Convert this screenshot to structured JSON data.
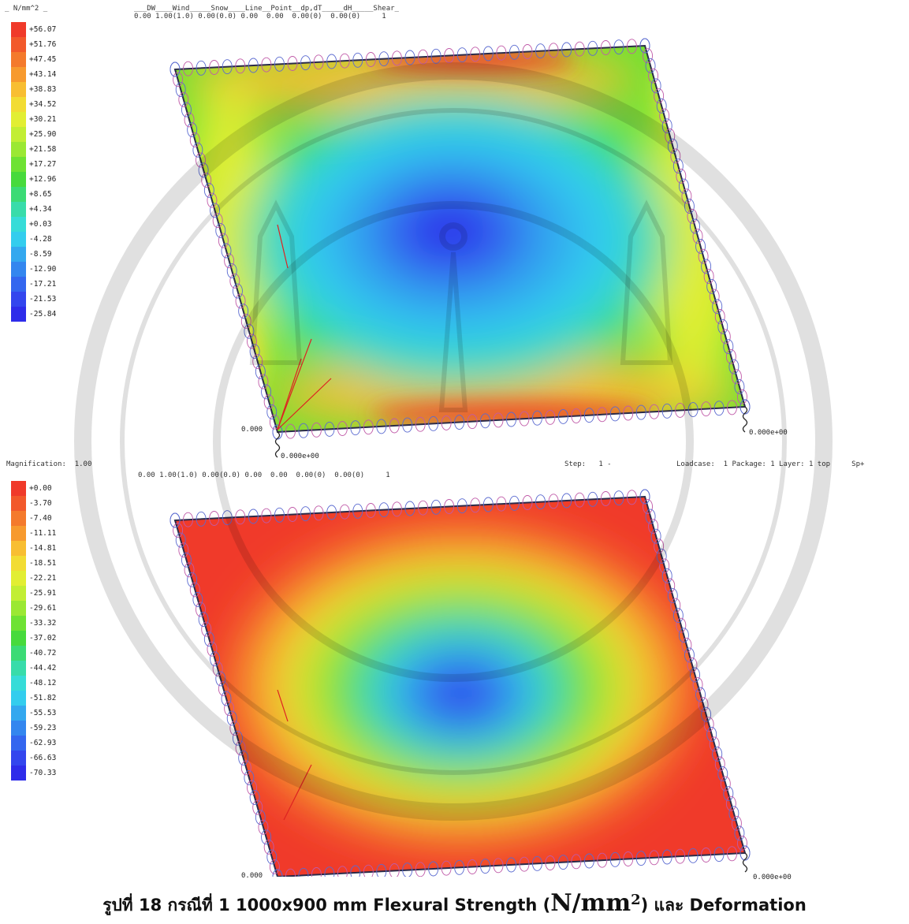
{
  "top_panel": {
    "unit_label": "_ N/mm^2 _",
    "header_line1": "___DW____Wind_____Snow____Line__Point__dp,dT_____dH_____Shear_",
    "header_line2": "0.00 1.00(1.0) 0.00(0.0) 0.00  0.00  0.00(0)  0.00(0)     1",
    "legend": [
      {
        "label": "+56.07",
        "color": "#f03a2a"
      },
      {
        "label": "+51.76",
        "color": "#f2592b"
      },
      {
        "label": "+47.45",
        "color": "#f47a2c"
      },
      {
        "label": "+43.14",
        "color": "#f79a2e"
      },
      {
        "label": "+38.83",
        "color": "#f8be32"
      },
      {
        "label": "+34.52",
        "color": "#f2dc33"
      },
      {
        "label": "+30.21",
        "color": "#e2ee33"
      },
      {
        "label": "+25.90",
        "color": "#c2ee34"
      },
      {
        "label": "+21.58",
        "color": "#9be833"
      },
      {
        "label": "+17.27",
        "color": "#6ee233"
      },
      {
        "label": "+12.96",
        "color": "#47da3c"
      },
      {
        "label": "+8.65",
        "color": "#3bdb75"
      },
      {
        "label": "+4.34",
        "color": "#38dcaa"
      },
      {
        "label": "+0.03",
        "color": "#36dcd8"
      },
      {
        "label": "-4.28",
        "color": "#33cdee"
      },
      {
        "label": "-8.59",
        "color": "#33a8ef"
      },
      {
        "label": "-12.90",
        "color": "#3386ef"
      },
      {
        "label": "-17.21",
        "color": "#3366ef"
      },
      {
        "label": "-21.53",
        "color": "#3346ee"
      },
      {
        "label": "-25.84",
        "color": "#2e2cea"
      }
    ],
    "support_label_left": "0.000",
    "support_label_bottom": "0.000e+00",
    "support_label_right": "0.000e+00"
  },
  "bottom_panel": {
    "magnification_label": "Magnification:  1.00",
    "step_label": "Step:   1 -",
    "loadcase_label": "Loadcase:  1 Package: 1 Layer: 1 top     Sp+",
    "header_line2": "0.00 1.00(1.0) 0.00(0.0) 0.00  0.00  0.00(0)  0.00(0)     1",
    "legend": [
      {
        "label": "+0.00",
        "color": "#f03a2a"
      },
      {
        "label": "-3.70",
        "color": "#f2592b"
      },
      {
        "label": "-7.40",
        "color": "#f47a2c"
      },
      {
        "label": "-11.11",
        "color": "#f79a2e"
      },
      {
        "label": "-14.81",
        "color": "#f8be32"
      },
      {
        "label": "-18.51",
        "color": "#f2dc33"
      },
      {
        "label": "-22.21",
        "color": "#e2ee33"
      },
      {
        "label": "-25.91",
        "color": "#c2ee34"
      },
      {
        "label": "-29.61",
        "color": "#9be833"
      },
      {
        "label": "-33.32",
        "color": "#6ee233"
      },
      {
        "label": "-37.02",
        "color": "#47da3c"
      },
      {
        "label": "-40.72",
        "color": "#3bdb75"
      },
      {
        "label": "-44.42",
        "color": "#38dcaa"
      },
      {
        "label": "-48.12",
        "color": "#36dcd8"
      },
      {
        "label": "-51.82",
        "color": "#33cdee"
      },
      {
        "label": "-55.53",
        "color": "#33a8ef"
      },
      {
        "label": "-59.23",
        "color": "#3386ef"
      },
      {
        "label": "-62.93",
        "color": "#3366ef"
      },
      {
        "label": "-66.63",
        "color": "#3346ee"
      },
      {
        "label": "-70.33",
        "color": "#2e2cea"
      }
    ],
    "support_label_left": "0.000",
    "support_label_right": "0.000e+00"
  },
  "caption": {
    "prefix": "รูปที่ 18 กรณีที่ 1 1000x900 mm Flexural Strength (",
    "unit": "N/mm",
    "sup": "2",
    "suffix": ") และ Deformation"
  }
}
